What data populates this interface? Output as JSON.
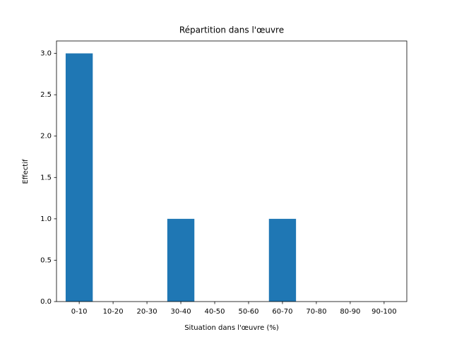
{
  "chart_data": {
    "type": "bar",
    "title": "Répartition dans l'œuvre",
    "x_label": "Situation dans l'œuvre (%)",
    "y_label": "Effectif",
    "categories": [
      "0-10",
      "10-20",
      "20-30",
      "30-40",
      "40-50",
      "50-60",
      "60-70",
      "70-80",
      "80-90",
      "90-100"
    ],
    "values": [
      3,
      0,
      0,
      1,
      0,
      0,
      1,
      0,
      0,
      0
    ],
    "color": "#1f77b4",
    "ylim": [
      0,
      3.15
    ],
    "yticks": [
      {
        "value": 0,
        "label": "0.0"
      },
      {
        "value": 0.5,
        "label": "0.5"
      },
      {
        "value": 1,
        "label": "1.0"
      },
      {
        "value": 1.5,
        "label": "1.5"
      },
      {
        "value": 2,
        "label": "2.0"
      },
      {
        "value": 2.5,
        "label": "2.5"
      },
      {
        "value": 3,
        "label": "3.0"
      }
    ],
    "grid": false
  }
}
